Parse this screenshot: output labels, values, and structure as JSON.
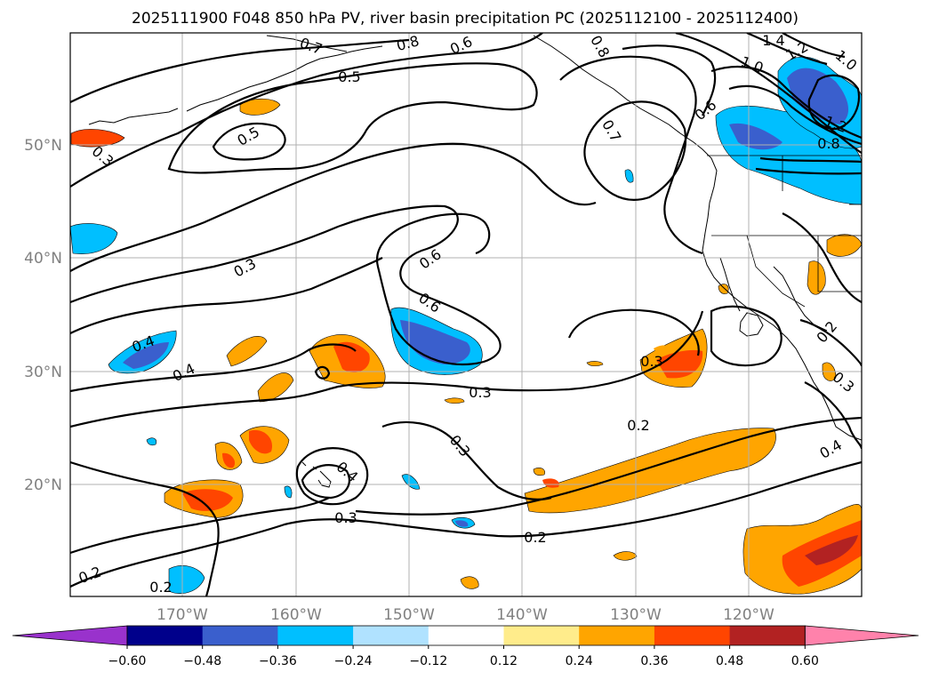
{
  "title": "2025111900 F048 850 hPa PV, river basin precipitation PC (2025112100 - 2025112400)",
  "lat_labels": [
    "50°N",
    "40°N",
    "30°N",
    "20°N"
  ],
  "lon_labels": [
    "170°W",
    "160°W",
    "150°W",
    "140°W",
    "130°W",
    "120°W"
  ],
  "contour_labels": [
    "0.7",
    "0.8",
    "0.6",
    "0.5",
    "0.5",
    "0.3",
    "0.3",
    "0.6",
    "0.6",
    "0.4",
    "0.4",
    "0.3",
    "0.3",
    "0.3",
    "0.2",
    "0.4",
    "0.3",
    "0.2",
    "0.2",
    "0.2",
    "0.8",
    "0.7",
    "0.6",
    "1.4",
    "1.2",
    "1.0",
    "1.0",
    "1.2",
    "0.8",
    "0.2",
    "0.3",
    "0.4"
  ],
  "colorbar": {
    "ticks": [
      "−0.60",
      "−0.48",
      "−0.36",
      "−0.24",
      "−0.12",
      "0.12",
      "0.24",
      "0.36",
      "0.48",
      "0.60"
    ],
    "colors": [
      "#9932cc",
      "#00008b",
      "#3a5fcd",
      "#00bfff",
      "#b0e2ff",
      "#ffffff",
      "#ffec8b",
      "#ffa500",
      "#ff4500",
      "#b22222",
      "#ff82ab"
    ]
  }
}
